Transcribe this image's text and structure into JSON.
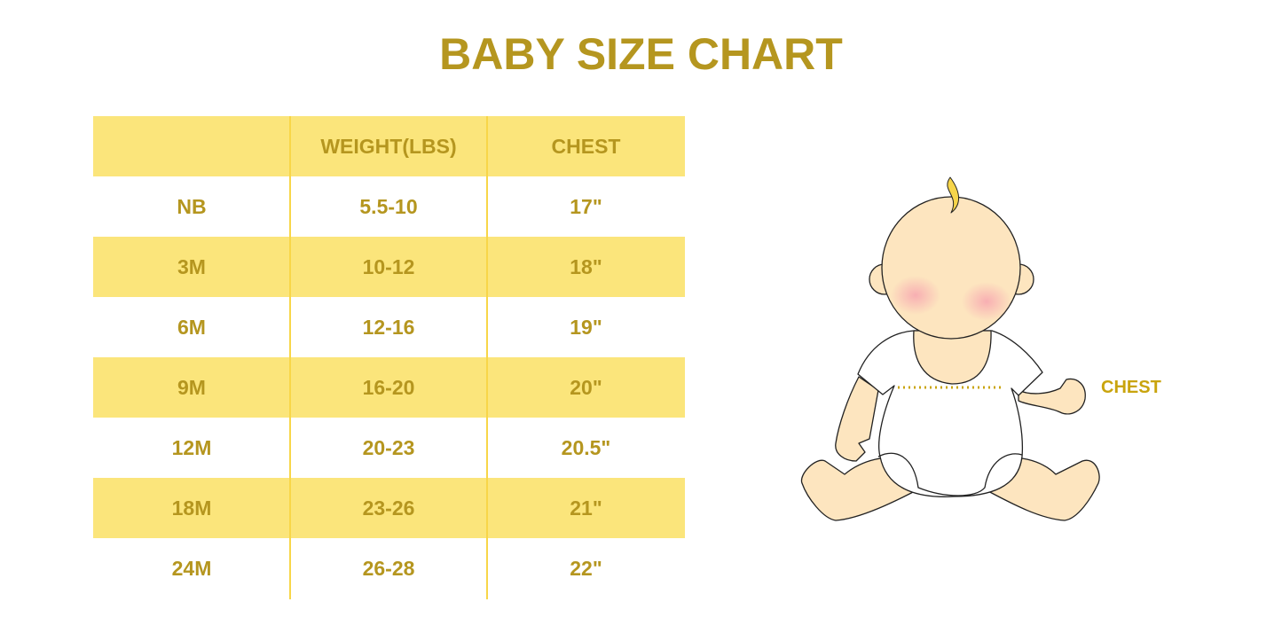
{
  "title": "BABY SIZE CHART",
  "table": {
    "headers": [
      "",
      "WEIGHT(LBS)",
      "CHEST"
    ],
    "rows": [
      [
        "NB",
        "5.5-10",
        "17\""
      ],
      [
        "3M",
        "10-12",
        "18\""
      ],
      [
        "6M",
        "12-16",
        "19\""
      ],
      [
        "9M",
        "16-20",
        "20\""
      ],
      [
        "12M",
        "20-23",
        "20.5\""
      ],
      [
        "18M",
        "23-26",
        "21\""
      ],
      [
        "24M",
        "26-28",
        "22\""
      ]
    ]
  },
  "illustration": {
    "chest_label": "CHEST"
  },
  "colors": {
    "text": "#b5961f",
    "band": "#fbe57b",
    "divider": "#f8d648",
    "skin": "#fde5bf"
  }
}
